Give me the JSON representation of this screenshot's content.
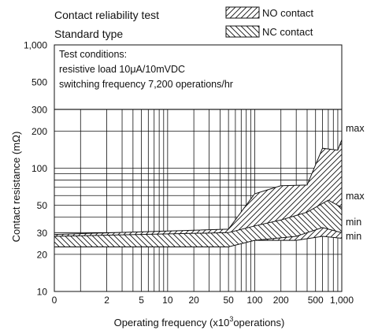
{
  "chart_data": {
    "type": "area",
    "title": "Contact reliability test",
    "subtitle": "Standard type",
    "xlabel": "Operating  frequency (x10",
    "xlabel_sup": "3",
    "xlabel_suffix": "operations)",
    "ylabel": "Contact resistance (mΩ)",
    "x_scale": "log",
    "y_scale": "log",
    "ylim": [
      10,
      1000
    ],
    "x_ticks": [
      {
        "label": "0",
        "value": 0.5
      },
      {
        "label": "2",
        "value": 2
      },
      {
        "label": "5",
        "value": 5
      },
      {
        "label": "10",
        "value": 10
      },
      {
        "label": "20",
        "value": 20
      },
      {
        "label": "50",
        "value": 50
      },
      {
        "label": "100",
        "value": 100
      },
      {
        "label": "200",
        "value": 200
      },
      {
        "label": "500",
        "value": 500
      },
      {
        "label": "1,000",
        "value": 1000
      }
    ],
    "y_ticks": [
      {
        "label": "10",
        "value": 10
      },
      {
        "label": "20",
        "value": 20
      },
      {
        "label": "30",
        "value": 30
      },
      {
        "label": "50",
        "value": 50
      },
      {
        "label": "100",
        "value": 100
      },
      {
        "label": "200",
        "value": 200
      },
      {
        "label": "300",
        "value": 300
      },
      {
        "label": "500",
        "value": 500
      },
      {
        "label": "1,000",
        "value": 1000
      }
    ],
    "test_conditions": {
      "heading": "Test conditions:",
      "load": "resistive load 10μA/10mVDC",
      "frequency": "switching frequency 7,200 operations/hr"
    },
    "legend_position": "top-right",
    "series": [
      {
        "name": "NO contact",
        "pattern": "diagonal-hatch",
        "max": [
          [
            0.5,
            29
          ],
          [
            50,
            32
          ],
          [
            100,
            62
          ],
          [
            200,
            72
          ],
          [
            400,
            73
          ],
          [
            600,
            145
          ],
          [
            900,
            140
          ],
          [
            1000,
            170
          ]
        ],
        "min": [
          [
            0.5,
            23
          ],
          [
            50,
            23
          ],
          [
            60,
            25
          ],
          [
            100,
            26
          ],
          [
            300,
            26
          ],
          [
            600,
            28
          ],
          [
            1000,
            27
          ]
        ]
      },
      {
        "name": "NC contact",
        "pattern": "cross-hatch",
        "max": [
          [
            0.5,
            28
          ],
          [
            50,
            30
          ],
          [
            100,
            34
          ],
          [
            200,
            38
          ],
          [
            400,
            44
          ],
          [
            700,
            55
          ],
          [
            1000,
            48
          ]
        ],
        "min": [
          [
            0.5,
            23
          ],
          [
            50,
            23
          ],
          [
            100,
            26
          ],
          [
            300,
            28
          ],
          [
            600,
            33
          ],
          [
            1000,
            30
          ]
        ]
      }
    ],
    "annotations": [
      "max",
      "max",
      "min",
      "min"
    ]
  }
}
